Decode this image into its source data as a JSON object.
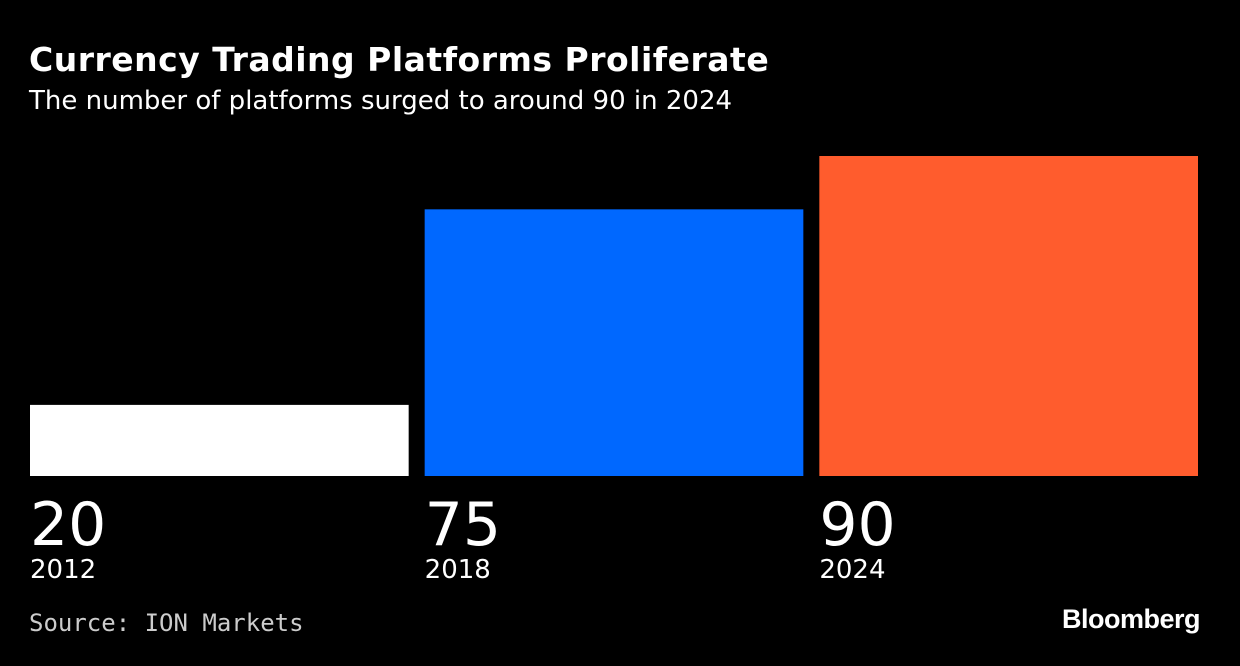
{
  "header": {
    "title": "Currency Trading Platforms Proliferate",
    "subtitle": "The number of platforms surged to around 90 in 2024"
  },
  "footer": {
    "source": "Source: ION Markets",
    "brand": "Bloomberg"
  },
  "chart_data": {
    "type": "bar",
    "categories": [
      "2012",
      "2018",
      "2024"
    ],
    "values": [
      20,
      75,
      90
    ],
    "colors": [
      "#ffffff",
      "#0068ff",
      "#ff5c2d"
    ],
    "title": "Currency Trading Platforms Proliferate",
    "subtitle": "The number of platforms surged to around 90 in 2024",
    "ylim": [
      0,
      90
    ],
    "grid": false,
    "legend": "none"
  }
}
